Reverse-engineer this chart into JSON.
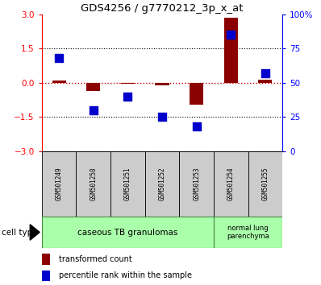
{
  "title": "GDS4256 / g7770212_3p_x_at",
  "samples": [
    "GSM501249",
    "GSM501250",
    "GSM501251",
    "GSM501252",
    "GSM501253",
    "GSM501254",
    "GSM501255"
  ],
  "transformed_count": [
    0.08,
    -0.35,
    -0.05,
    -0.12,
    -0.95,
    2.85,
    0.12
  ],
  "percentile_rank_raw": [
    68,
    30,
    40,
    25,
    18,
    85,
    57
  ],
  "ylim_left": [
    -3,
    3
  ],
  "ylim_right": [
    0,
    100
  ],
  "yticks_left": [
    -3,
    -1.5,
    0,
    1.5,
    3
  ],
  "yticks_right": [
    0,
    25,
    50,
    75,
    100
  ],
  "bar_color": "#8B0000",
  "point_color": "#0000CC",
  "bar_width": 0.4,
  "point_size": 45,
  "zero_line_color": "#CC0000",
  "legend_labels": [
    "transformed count",
    "percentile rank within the sample"
  ],
  "cell_type_label": "cell type",
  "group1_label": "caseous TB granulomas",
  "group2_label": "normal lung\nparenchyma",
  "group1_color": "#AAFFAA",
  "group2_color": "#AAFFAA",
  "sample_box_color": "#CCCCCC",
  "right_axis_labels": [
    "0",
    "25",
    "50",
    "75",
    "100%"
  ]
}
